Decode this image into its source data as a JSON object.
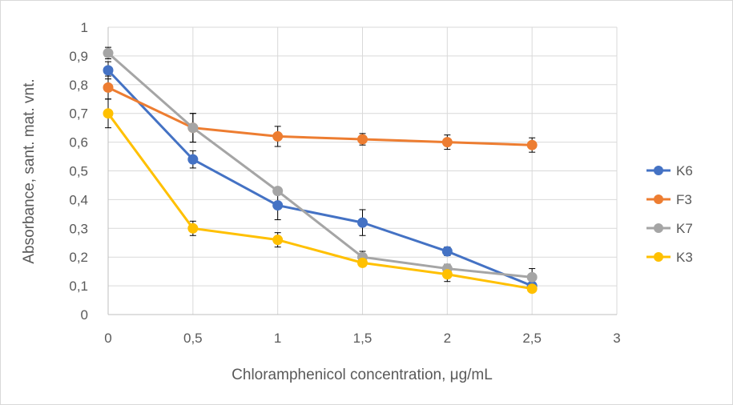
{
  "chart_data": {
    "type": "line",
    "title": "",
    "xlabel": "Chloramphenicol concentration, μg/mL",
    "ylabel": "Absorbance, sant. mat. vnt.",
    "xlim": [
      0,
      3
    ],
    "ylim": [
      0,
      1
    ],
    "x_ticks": [
      "0",
      "0,5",
      "1",
      "1,5",
      "2",
      "2,5",
      "3"
    ],
    "y_ticks": [
      "0",
      "0,1",
      "0,2",
      "0,3",
      "0,4",
      "0,5",
      "0,6",
      "0,7",
      "0,8",
      "0,9",
      "1"
    ],
    "grid": true,
    "legend_position": "right",
    "x": [
      0,
      0.5,
      1,
      1.5,
      2,
      2.5
    ],
    "series": [
      {
        "name": "K6",
        "color": "#4472c4",
        "values": [
          0.85,
          0.54,
          0.38,
          0.32,
          0.22,
          0.1
        ],
        "error": [
          0.03,
          0.03,
          0.05,
          0.045,
          0.015,
          0.02
        ]
      },
      {
        "name": "F3",
        "color": "#ed7d31",
        "values": [
          0.79,
          0.65,
          0.62,
          0.61,
          0.6,
          0.59
        ],
        "error": [
          0.04,
          0.05,
          0.035,
          0.02,
          0.025,
          0.025
        ]
      },
      {
        "name": "K7",
        "color": "#a5a5a5",
        "values": [
          0.91,
          0.65,
          0.43,
          0.2,
          0.16,
          0.13
        ],
        "error": [
          0.02,
          0.05,
          0.01,
          0.02,
          0.015,
          0.03
        ]
      },
      {
        "name": "K3",
        "color": "#ffc000",
        "values": [
          0.7,
          0.3,
          0.26,
          0.18,
          0.14,
          0.09
        ],
        "error": [
          0.05,
          0.025,
          0.025,
          0.01,
          0.025,
          0.01
        ]
      }
    ]
  }
}
